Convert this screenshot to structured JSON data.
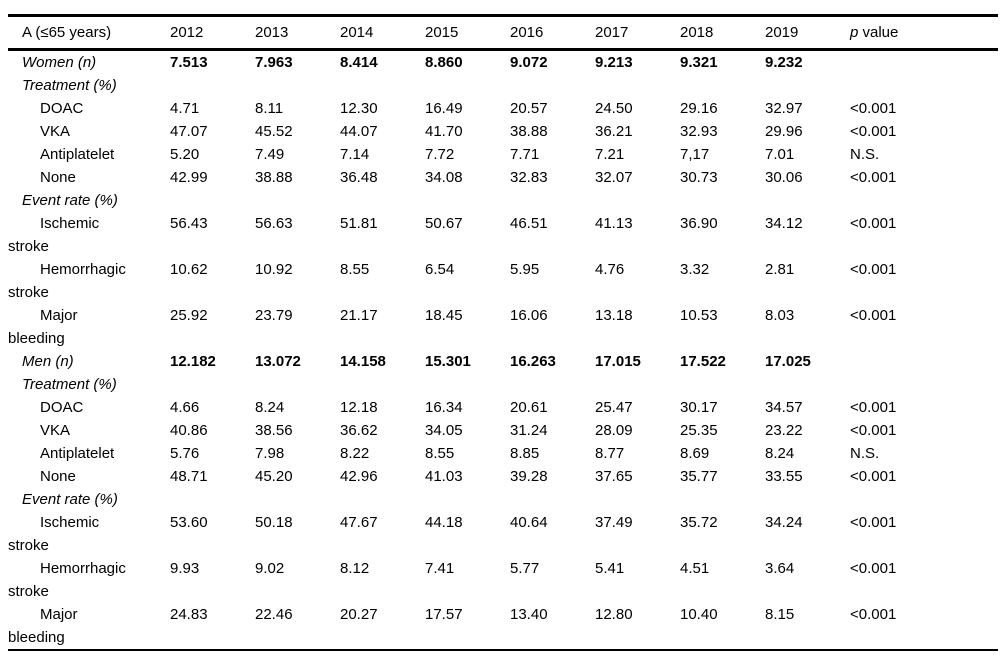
{
  "table": {
    "header": {
      "row_label": "A (≤65 years)",
      "years": [
        "2012",
        "2013",
        "2014",
        "2015",
        "2016",
        "2017",
        "2018",
        "2019"
      ],
      "p_italic": "p",
      "p_rest": " value"
    },
    "rows": [
      {
        "type": "group",
        "label": "Women (n)",
        "values": [
          "7.513",
          "7.963",
          "8.414",
          "8.860",
          "9.072",
          "9.213",
          "9.321",
          "9.232"
        ],
        "p": ""
      },
      {
        "type": "section",
        "label": "Treatment (%)",
        "values": [
          "",
          "",
          "",
          "",
          "",
          "",
          "",
          ""
        ],
        "p": ""
      },
      {
        "type": "item",
        "label": "DOAC",
        "values": [
          "4.71",
          "8.11",
          "12.30",
          "16.49",
          "20.57",
          "24.50",
          "29.16",
          "32.97"
        ],
        "p": "<0.001"
      },
      {
        "type": "item",
        "label": "VKA",
        "values": [
          "47.07",
          "45.52",
          "44.07",
          "41.70",
          "38.88",
          "36.21",
          "32.93",
          "29.96"
        ],
        "p": "<0.001"
      },
      {
        "type": "item",
        "label": "Antiplatelet",
        "values": [
          "5.20",
          "7.49",
          "7.14",
          "7.72",
          "7.71",
          "7.21",
          "7,17",
          "7.01"
        ],
        "p": "N.S."
      },
      {
        "type": "item",
        "label": "None",
        "values": [
          "42.99",
          "38.88",
          "36.48",
          "34.08",
          "32.83",
          "32.07",
          "30.73",
          "30.06"
        ],
        "p": "<0.001"
      },
      {
        "type": "section",
        "label": "Event rate (%)",
        "values": [
          "",
          "",
          "",
          "",
          "",
          "",
          "",
          ""
        ],
        "p": ""
      },
      {
        "type": "item",
        "label": "Ischemic\nstroke",
        "values": [
          "56.43",
          "56.63",
          "51.81",
          "50.67",
          "46.51",
          "41.13",
          "36.90",
          "34.12"
        ],
        "p": "<0.001"
      },
      {
        "type": "item",
        "label": "Hemorrhagic\nstroke",
        "values": [
          "10.62",
          "10.92",
          "8.55",
          "6.54",
          "5.95",
          "4.76",
          "3.32",
          "2.81"
        ],
        "p": "<0.001"
      },
      {
        "type": "item",
        "label": "Major\nbleeding",
        "values": [
          "25.92",
          "23.79",
          "21.17",
          "18.45",
          "16.06",
          "13.18",
          "10.53",
          "8.03"
        ],
        "p": "<0.001"
      },
      {
        "type": "group",
        "label": "Men (n)",
        "values": [
          "12.182",
          "13.072",
          "14.158",
          "15.301",
          "16.263",
          "17.015",
          "17.522",
          "17.025"
        ],
        "p": ""
      },
      {
        "type": "section",
        "label": "Treatment (%)",
        "values": [
          "",
          "",
          "",
          "",
          "",
          "",
          "",
          ""
        ],
        "p": ""
      },
      {
        "type": "item",
        "label": "DOAC",
        "values": [
          "4.66",
          "8.24",
          "12.18",
          "16.34",
          "20.61",
          "25.47",
          "30.17",
          "34.57"
        ],
        "p": "<0.001"
      },
      {
        "type": "item",
        "label": "VKA",
        "values": [
          "40.86",
          "38.56",
          "36.62",
          "34.05",
          "31.24",
          "28.09",
          "25.35",
          "23.22"
        ],
        "p": "<0.001"
      },
      {
        "type": "item",
        "label": "Antiplatelet",
        "values": [
          "5.76",
          "7.98",
          "8.22",
          "8.55",
          "8.85",
          "8.77",
          "8.69",
          "8.24"
        ],
        "p": "N.S."
      },
      {
        "type": "item",
        "label": "None",
        "values": [
          "48.71",
          "45.20",
          "42.96",
          "41.03",
          "39.28",
          "37.65",
          "35.77",
          "33.55"
        ],
        "p": "<0.001"
      },
      {
        "type": "section",
        "label": "Event rate (%)",
        "values": [
          "",
          "",
          "",
          "",
          "",
          "",
          "",
          ""
        ],
        "p": ""
      },
      {
        "type": "item",
        "label": "Ischemic\nstroke",
        "values": [
          "53.60",
          "50.18",
          "47.67",
          "44.18",
          "40.64",
          "37.49",
          "35.72",
          "34.24"
        ],
        "p": "<0.001"
      },
      {
        "type": "item",
        "label": "Hemorrhagic\nstroke",
        "values": [
          "9.93",
          "9.02",
          "8.12",
          "7.41",
          "5.77",
          "5.41",
          "4.51",
          "3.64"
        ],
        "p": "<0.001"
      },
      {
        "type": "item",
        "label": "Major\nbleeding",
        "values": [
          "24.83",
          "22.46",
          "20.27",
          "17.57",
          "13.40",
          "12.80",
          "10.40",
          "8.15"
        ],
        "p": "<0.001"
      }
    ]
  }
}
